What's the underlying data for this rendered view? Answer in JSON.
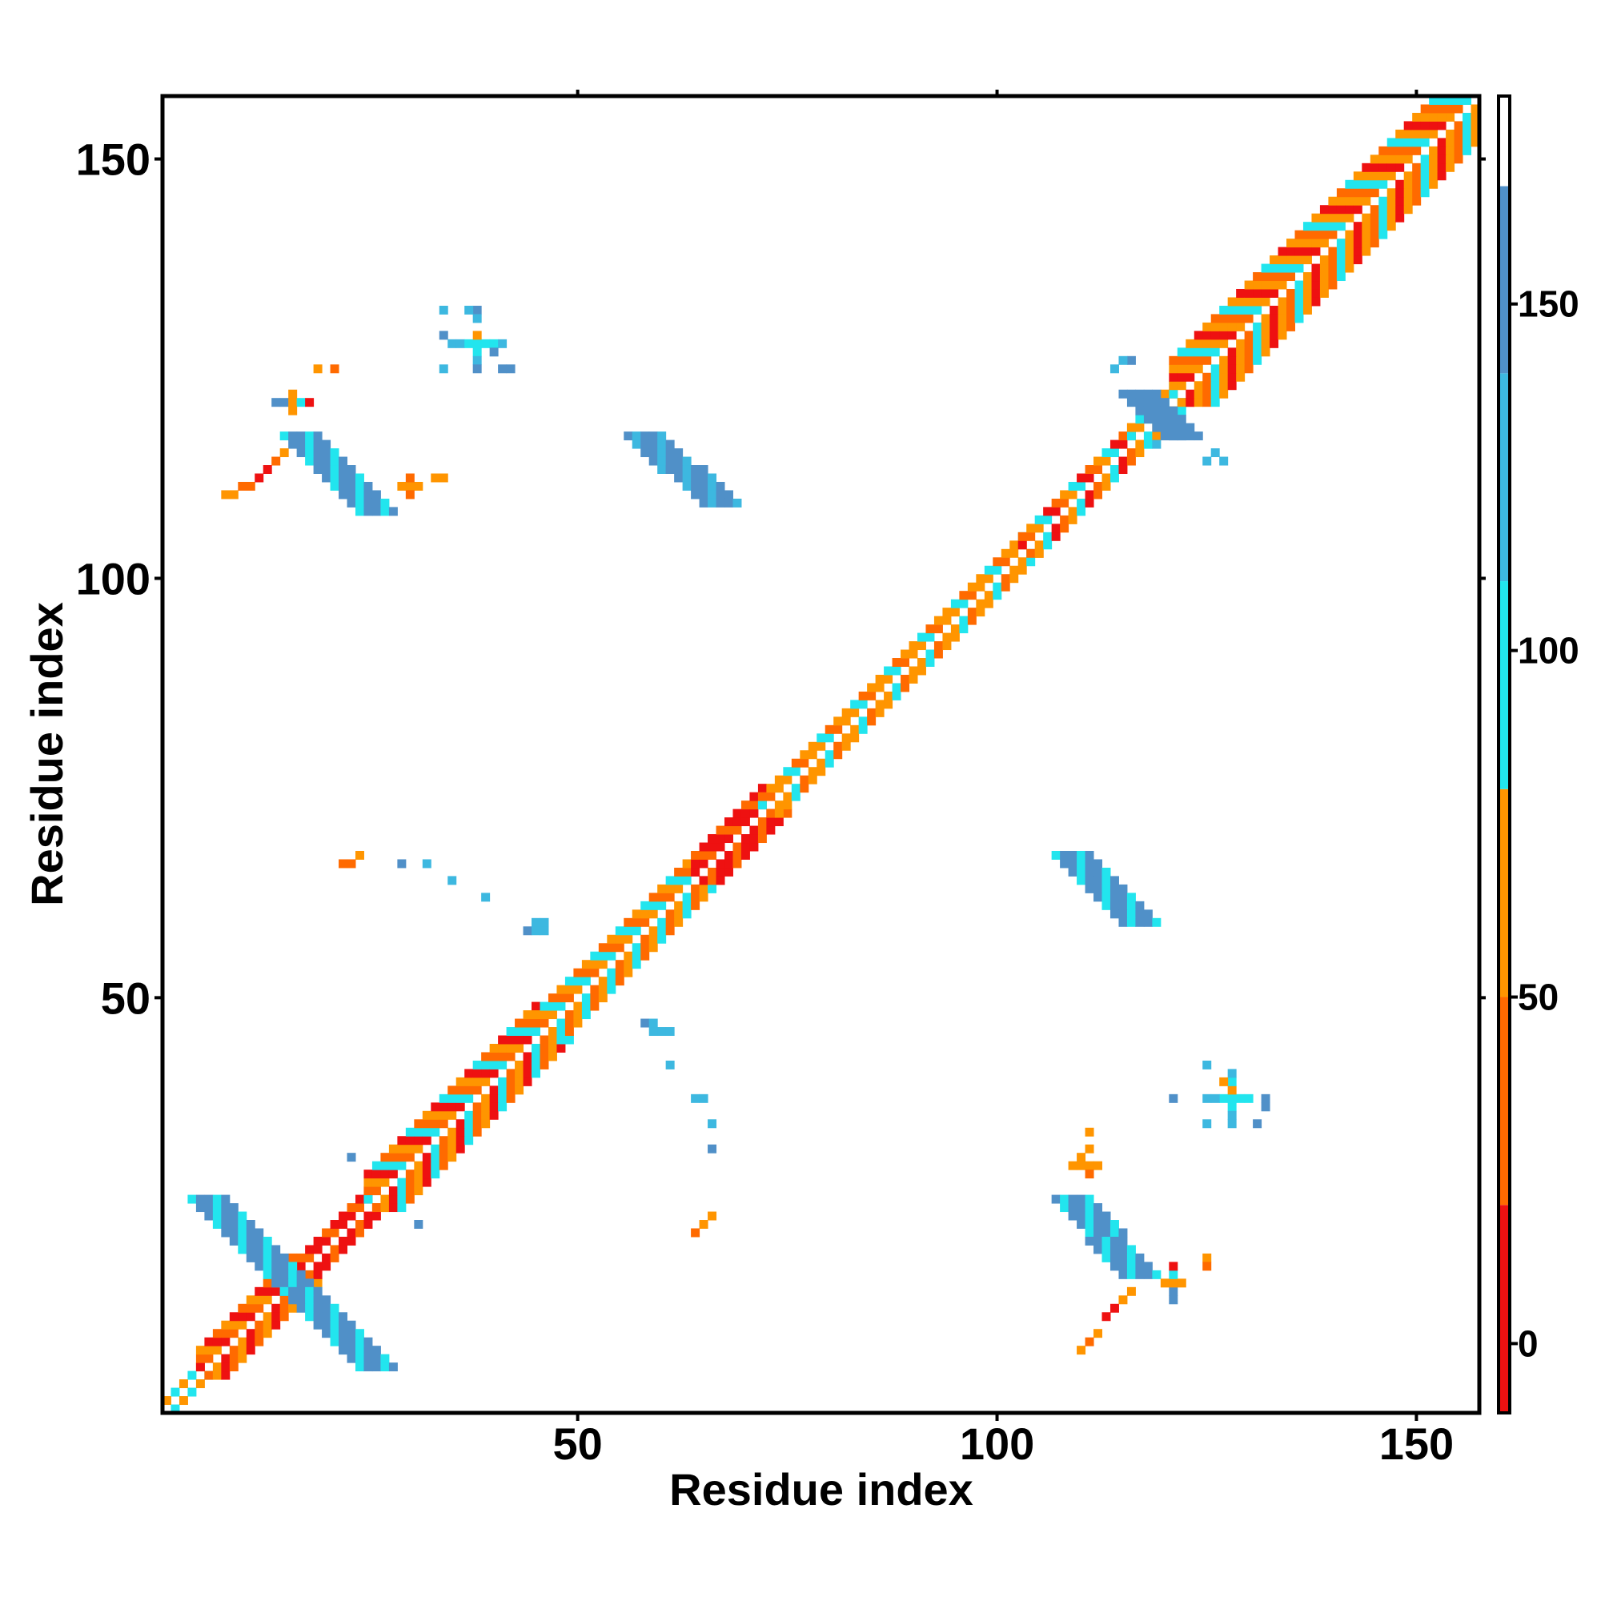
{
  "chart_data": {
    "type": "heatmap",
    "title": "",
    "xlabel": "Residue index",
    "ylabel": "Residue index",
    "xlim": [
      1,
      157
    ],
    "ylim": [
      1,
      157
    ],
    "xticks": [
      {
        "value": 50,
        "label": "50"
      },
      {
        "value": 100,
        "label": "100"
      },
      {
        "value": 150,
        "label": "150"
      }
    ],
    "yticks": [
      {
        "value": 50,
        "label": "50"
      },
      {
        "value": 100,
        "label": "100"
      },
      {
        "value": 150,
        "label": "150"
      }
    ],
    "grid": false,
    "legend": "none",
    "colorbar": {
      "range": [
        -10,
        180
      ],
      "ticks": [
        {
          "value": 0,
          "label": "0"
        },
        {
          "value": 50,
          "label": "50"
        },
        {
          "value": 100,
          "label": "100"
        },
        {
          "value": 150,
          "label": "150"
        }
      ],
      "bands": [
        {
          "from": -10,
          "to": 20,
          "color": "#ee1111"
        },
        {
          "from": 20,
          "to": 50,
          "color": "#ff6a00"
        },
        {
          "from": 50,
          "to": 80,
          "color": "#ff9500"
        },
        {
          "from": 80,
          "to": 110,
          "color": "#22e5ee"
        },
        {
          "from": 110,
          "to": 140,
          "color": "#3db8e0"
        },
        {
          "from": 140,
          "to": 167,
          "color": "#5090c8"
        },
        {
          "from": 167,
          "to": 180,
          "color": "#ffffff"
        }
      ]
    },
    "palette": {
      "red": "#ee1111",
      "orange_red": "#ff6a00",
      "orange": "#ff9500",
      "cyan": "#22e5ee",
      "sky": "#3db8e0",
      "steel": "#5090c8"
    },
    "diagonal_segments": [
      {
        "from": 1,
        "to": 5,
        "pattern": [
          "orange",
          "cyan"
        ],
        "width": 1
      },
      {
        "from": 5,
        "to": 16,
        "pattern": [
          "red",
          "orange_red",
          "orange"
        ],
        "width": 3
      },
      {
        "from": 16,
        "to": 25,
        "pattern": [
          "red",
          "orange_red",
          "red"
        ],
        "width": 2
      },
      {
        "from": 25,
        "to": 45,
        "pattern": [
          "orange",
          "red",
          "cyan",
          "orange_red"
        ],
        "width": 4
      },
      {
        "from": 45,
        "to": 64,
        "pattern": [
          "orange",
          "cyan",
          "orange_red"
        ],
        "width": 3
      },
      {
        "from": 64,
        "to": 72,
        "pattern": [
          "red",
          "orange_red",
          "red"
        ],
        "width": 3
      },
      {
        "from": 72,
        "to": 103,
        "pattern": [
          "orange",
          "cyan",
          "orange_red",
          "orange"
        ],
        "width": 2
      },
      {
        "from": 103,
        "to": 116,
        "pattern": [
          "red",
          "orange_red",
          "orange",
          "cyan"
        ],
        "width": 2
      },
      {
        "from": 116,
        "to": 121,
        "pattern": [
          "orange",
          "cyan"
        ],
        "width": 2
      },
      {
        "from": 121,
        "to": 157,
        "pattern": [
          "orange",
          "orange_red",
          "cyan",
          "orange",
          "red"
        ],
        "width": 5
      }
    ],
    "antiparallel_strips": [
      {
        "from": [
          6,
          26
        ],
        "to": [
          17,
          15
        ],
        "colors": [
          "steel",
          "steel",
          "cyan"
        ],
        "width": 2
      },
      {
        "from": [
          17,
          15
        ],
        "to": [
          26,
          6
        ],
        "colors": [
          "steel",
          "steel",
          "cyan"
        ],
        "width": 2
      },
      {
        "from": [
          17,
          117
        ],
        "to": [
          26,
          108
        ],
        "colors": [
          "steel",
          "steel",
          "cyan"
        ],
        "width": 2
      },
      {
        "from": [
          58,
          117
        ],
        "to": [
          67,
          109
        ],
        "colors": [
          "sky",
          "steel",
          "steel"
        ],
        "width": 2
      },
      {
        "from": [
          109,
          67
        ],
        "to": [
          117,
          59
        ],
        "colors": [
          "steel",
          "steel",
          "cyan"
        ],
        "width": 2
      },
      {
        "from": [
          109,
          26
        ],
        "to": [
          117,
          17
        ],
        "colors": [
          "cyan",
          "steel",
          "steel"
        ],
        "width": 2
      },
      {
        "from": [
          117,
          122
        ],
        "to": [
          122,
          117
        ],
        "colors": [
          "steel",
          "steel"
        ],
        "width": 2
      }
    ],
    "scattered_contacts": [
      {
        "x": 8,
        "y": 110,
        "c": "orange"
      },
      {
        "x": 9,
        "y": 110,
        "c": "orange"
      },
      {
        "x": 10,
        "y": 111,
        "c": "orange_red"
      },
      {
        "x": 11,
        "y": 111,
        "c": "orange_red"
      },
      {
        "x": 12,
        "y": 112,
        "c": "red"
      },
      {
        "x": 13,
        "y": 113,
        "c": "red"
      },
      {
        "x": 14,
        "y": 114,
        "c": "orange_red"
      },
      {
        "x": 15,
        "y": 115,
        "c": "orange"
      },
      {
        "x": 14,
        "y": 121,
        "c": "steel"
      },
      {
        "x": 15,
        "y": 121,
        "c": "steel"
      },
      {
        "x": 16,
        "y": 121,
        "c": "orange"
      },
      {
        "x": 17,
        "y": 121,
        "c": "cyan"
      },
      {
        "x": 18,
        "y": 121,
        "c": "red"
      },
      {
        "x": 16,
        "y": 122,
        "c": "orange"
      },
      {
        "x": 16,
        "y": 120,
        "c": "orange"
      },
      {
        "x": 19,
        "y": 125,
        "c": "orange"
      },
      {
        "x": 21,
        "y": 125,
        "c": "orange_red"
      },
      {
        "x": 30,
        "y": 111,
        "c": "orange"
      },
      {
        "x": 31,
        "y": 111,
        "c": "orange"
      },
      {
        "x": 30,
        "y": 110,
        "c": "orange_red"
      },
      {
        "x": 30,
        "y": 112,
        "c": "orange_red"
      },
      {
        "x": 29,
        "y": 111,
        "c": "orange"
      },
      {
        "x": 34,
        "y": 112,
        "c": "orange"
      },
      {
        "x": 33,
        "y": 112,
        "c": "orange"
      },
      {
        "x": 34,
        "y": 129,
        "c": "steel"
      },
      {
        "x": 35,
        "y": 128,
        "c": "sky"
      },
      {
        "x": 36,
        "y": 128,
        "c": "sky"
      },
      {
        "x": 37,
        "y": 128,
        "c": "cyan"
      },
      {
        "x": 38,
        "y": 128,
        "c": "cyan"
      },
      {
        "x": 39,
        "y": 128,
        "c": "cyan"
      },
      {
        "x": 40,
        "y": 128,
        "c": "cyan"
      },
      {
        "x": 41,
        "y": 128,
        "c": "sky"
      },
      {
        "x": 38,
        "y": 129,
        "c": "orange"
      },
      {
        "x": 38,
        "y": 127,
        "c": "cyan"
      },
      {
        "x": 38,
        "y": 126,
        "c": "sky"
      },
      {
        "x": 38,
        "y": 125,
        "c": "steel"
      },
      {
        "x": 38,
        "y": 132,
        "c": "steel"
      },
      {
        "x": 37,
        "y": 132,
        "c": "sky"
      },
      {
        "x": 38,
        "y": 131,
        "c": "sky"
      },
      {
        "x": 34,
        "y": 132,
        "c": "sky"
      },
      {
        "x": 34,
        "y": 125,
        "c": "sky"
      },
      {
        "x": 40,
        "y": 127,
        "c": "steel"
      },
      {
        "x": 42,
        "y": 125,
        "c": "steel"
      },
      {
        "x": 41,
        "y": 125,
        "c": "steel"
      },
      {
        "x": 121,
        "y": 38,
        "c": "steel"
      },
      {
        "x": 128,
        "y": 38,
        "c": "cyan"
      },
      {
        "x": 129,
        "y": 38,
        "c": "cyan"
      },
      {
        "x": 130,
        "y": 38,
        "c": "cyan"
      },
      {
        "x": 127,
        "y": 38,
        "c": "cyan"
      },
      {
        "x": 126,
        "y": 38,
        "c": "sky"
      },
      {
        "x": 125,
        "y": 38,
        "c": "sky"
      },
      {
        "x": 128,
        "y": 37,
        "c": "cyan"
      },
      {
        "x": 128,
        "y": 36,
        "c": "sky"
      },
      {
        "x": 128,
        "y": 35,
        "c": "sky"
      },
      {
        "x": 128,
        "y": 39,
        "c": "orange"
      },
      {
        "x": 128,
        "y": 40,
        "c": "cyan"
      },
      {
        "x": 128,
        "y": 41,
        "c": "sky"
      },
      {
        "x": 125,
        "y": 42,
        "c": "sky"
      },
      {
        "x": 125,
        "y": 35,
        "c": "sky"
      },
      {
        "x": 131,
        "y": 35,
        "c": "steel"
      },
      {
        "x": 132,
        "y": 37,
        "c": "steel"
      },
      {
        "x": 132,
        "y": 38,
        "c": "steel"
      },
      {
        "x": 127,
        "y": 40,
        "c": "orange"
      },
      {
        "x": 110,
        "y": 30,
        "c": "orange"
      },
      {
        "x": 110,
        "y": 31,
        "c": "orange"
      },
      {
        "x": 111,
        "y": 30,
        "c": "orange"
      },
      {
        "x": 109,
        "y": 30,
        "c": "orange"
      },
      {
        "x": 111,
        "y": 32,
        "c": "orange"
      },
      {
        "x": 112,
        "y": 30,
        "c": "orange"
      },
      {
        "x": 111,
        "y": 29,
        "c": "orange_red"
      },
      {
        "x": 111,
        "y": 34,
        "c": "orange"
      },
      {
        "x": 110,
        "y": 8,
        "c": "orange"
      },
      {
        "x": 111,
        "y": 9,
        "c": "orange_red"
      },
      {
        "x": 112,
        "y": 10,
        "c": "orange"
      },
      {
        "x": 113,
        "y": 12,
        "c": "red"
      },
      {
        "x": 114,
        "y": 13,
        "c": "red"
      },
      {
        "x": 115,
        "y": 14,
        "c": "orange"
      },
      {
        "x": 116,
        "y": 15,
        "c": "orange"
      },
      {
        "x": 121,
        "y": 14,
        "c": "steel"
      },
      {
        "x": 121,
        "y": 15,
        "c": "steel"
      },
      {
        "x": 121,
        "y": 16,
        "c": "orange"
      },
      {
        "x": 121,
        "y": 17,
        "c": "cyan"
      },
      {
        "x": 121,
        "y": 18,
        "c": "red"
      },
      {
        "x": 120,
        "y": 16,
        "c": "orange"
      },
      {
        "x": 122,
        "y": 16,
        "c": "orange"
      },
      {
        "x": 125,
        "y": 19,
        "c": "orange"
      },
      {
        "x": 125,
        "y": 18,
        "c": "orange_red"
      },
      {
        "x": 22,
        "y": 66,
        "c": "orange_red"
      },
      {
        "x": 23,
        "y": 66,
        "c": "orange_red"
      },
      {
        "x": 24,
        "y": 67,
        "c": "orange"
      },
      {
        "x": 29,
        "y": 66,
        "c": "steel"
      },
      {
        "x": 32,
        "y": 66,
        "c": "sky"
      },
      {
        "x": 35,
        "y": 64,
        "c": "sky"
      },
      {
        "x": 39,
        "y": 62,
        "c": "sky"
      },
      {
        "x": 44,
        "y": 58,
        "c": "steel"
      },
      {
        "x": 45,
        "y": 59,
        "c": "sky"
      },
      {
        "x": 46,
        "y": 59,
        "c": "sky"
      },
      {
        "x": 46,
        "y": 58,
        "c": "sky"
      },
      {
        "x": 45,
        "y": 58,
        "c": "sky"
      },
      {
        "x": 58,
        "y": 47,
        "c": "steel"
      },
      {
        "x": 59,
        "y": 46,
        "c": "sky"
      },
      {
        "x": 59,
        "y": 47,
        "c": "sky"
      },
      {
        "x": 60,
        "y": 46,
        "c": "sky"
      },
      {
        "x": 61,
        "y": 46,
        "c": "sky"
      },
      {
        "x": 61,
        "y": 42,
        "c": "sky"
      },
      {
        "x": 64,
        "y": 38,
        "c": "sky"
      },
      {
        "x": 65,
        "y": 38,
        "c": "sky"
      },
      {
        "x": 66,
        "y": 35,
        "c": "sky"
      },
      {
        "x": 66,
        "y": 32,
        "c": "steel"
      },
      {
        "x": 64,
        "y": 22,
        "c": "orange_red"
      },
      {
        "x": 65,
        "y": 23,
        "c": "orange"
      },
      {
        "x": 66,
        "y": 24,
        "c": "orange"
      },
      {
        "x": 23,
        "y": 31,
        "c": "steel"
      },
      {
        "x": 31,
        "y": 23,
        "c": "steel"
      },
      {
        "x": 121,
        "y": 117,
        "c": "steel"
      },
      {
        "x": 122,
        "y": 117,
        "c": "steel"
      },
      {
        "x": 119,
        "y": 116,
        "c": "sky"
      },
      {
        "x": 125,
        "y": 114,
        "c": "sky"
      },
      {
        "x": 127,
        "y": 114,
        "c": "sky"
      },
      {
        "x": 126,
        "y": 115,
        "c": "sky"
      },
      {
        "x": 114,
        "y": 125,
        "c": "sky"
      },
      {
        "x": 116,
        "y": 126,
        "c": "steel"
      },
      {
        "x": 115,
        "y": 126,
        "c": "sky"
      }
    ]
  }
}
